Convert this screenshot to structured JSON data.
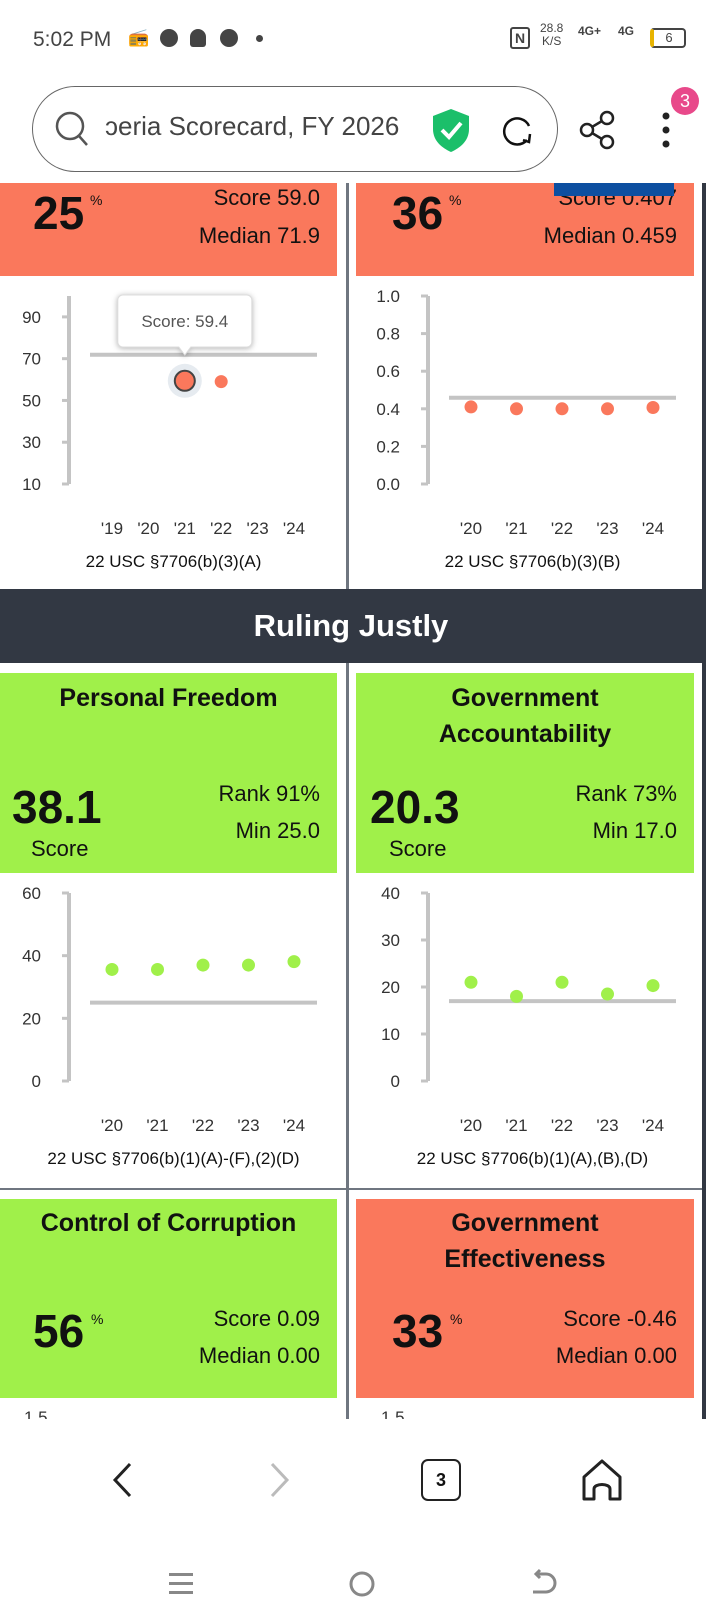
{
  "status_bar": {
    "time": "5:02 PM",
    "net_speed": "28.8",
    "net_unit": "K/S",
    "signal1": "4G+",
    "signal2": "4G",
    "battery": "6"
  },
  "browser": {
    "url_text": "ɔeria Scorecard, FY 2026",
    "menu_badge": "3",
    "tab_count": "3"
  },
  "colors": {
    "below": "#fa785c",
    "above": "#a0f04a",
    "header": "#323843",
    "median_line": "#c4c4c4"
  },
  "top_cards": [
    {
      "big": "25",
      "unit": "%",
      "line1": "Score 59.0",
      "line2": "Median 71.9"
    },
    {
      "big": "36",
      "unit": "%",
      "line1": "Score 0.407",
      "line2": "Median 0.459"
    }
  ],
  "section": {
    "title": "Ruling Justly"
  },
  "mid_cards": [
    {
      "title": "Personal Freedom",
      "big": "38.1",
      "big_label": "Score",
      "line1": "Rank 91%",
      "line2": "Min 25.0"
    },
    {
      "title": "Government Accountability",
      "big": "20.3",
      "big_label": "Score",
      "line1": "Rank 73%",
      "line2": "Min 17.0"
    }
  ],
  "bottom_cards": [
    {
      "title": "Control of Corruption",
      "big": "56",
      "unit": "%",
      "line1": "Score 0.09",
      "line2": "Median 0.00",
      "partial_tick": "1.5"
    },
    {
      "title": "Government Effectiveness",
      "big": "33",
      "unit": "%",
      "line1": "Score -0.46",
      "line2": "Median 0.00",
      "partial_tick": "1.5"
    }
  ],
  "chart_data": [
    {
      "type": "scatter",
      "categories": [
        "'19",
        "'20",
        "'21",
        "'22",
        "'23",
        "'24"
      ],
      "values": [
        null,
        null,
        59.4,
        59.0,
        null,
        null
      ],
      "reference_line": 71.9,
      "ylim": [
        10,
        100
      ],
      "yticks": [
        "10",
        "30",
        "50",
        "70",
        "90"
      ],
      "caption": "22 USC §7706(b)(3)(A)",
      "color": "#fa785c",
      "tooltip": {
        "text": "Score: 59.4",
        "index": 2
      }
    },
    {
      "type": "scatter",
      "categories": [
        "'20",
        "'21",
        "'22",
        "'23",
        "'24"
      ],
      "values": [
        0.41,
        0.4,
        0.4,
        0.4,
        0.407
      ],
      "reference_line": 0.459,
      "ylim": [
        0,
        1.0
      ],
      "yticks": [
        "0.0",
        "0.2",
        "0.4",
        "0.6",
        "0.8",
        "1.0"
      ],
      "caption": "22 USC §7706(b)(3)(B)",
      "color": "#fa785c"
    },
    {
      "type": "scatter",
      "categories": [
        "'20",
        "'21",
        "'22",
        "'23",
        "'24"
      ],
      "values": [
        35.6,
        35.6,
        37.0,
        37.0,
        38.1
      ],
      "reference_line": 25.0,
      "ylim": [
        0,
        60
      ],
      "yticks": [
        "0",
        "20",
        "40",
        "60"
      ],
      "caption": "22 USC §7706(b)(1)(A)-(F),(2)(D)",
      "color": "#a0f04a"
    },
    {
      "type": "scatter",
      "categories": [
        "'20",
        "'21",
        "'22",
        "'23",
        "'24"
      ],
      "values": [
        21.0,
        18.0,
        21.0,
        18.5,
        20.3
      ],
      "reference_line": 17.0,
      "ylim": [
        0,
        40
      ],
      "yticks": [
        "0",
        "10",
        "20",
        "30",
        "40"
      ],
      "caption": "22 USC §7706(b)(1)(A),(B),(D)",
      "color": "#a0f04a"
    }
  ]
}
